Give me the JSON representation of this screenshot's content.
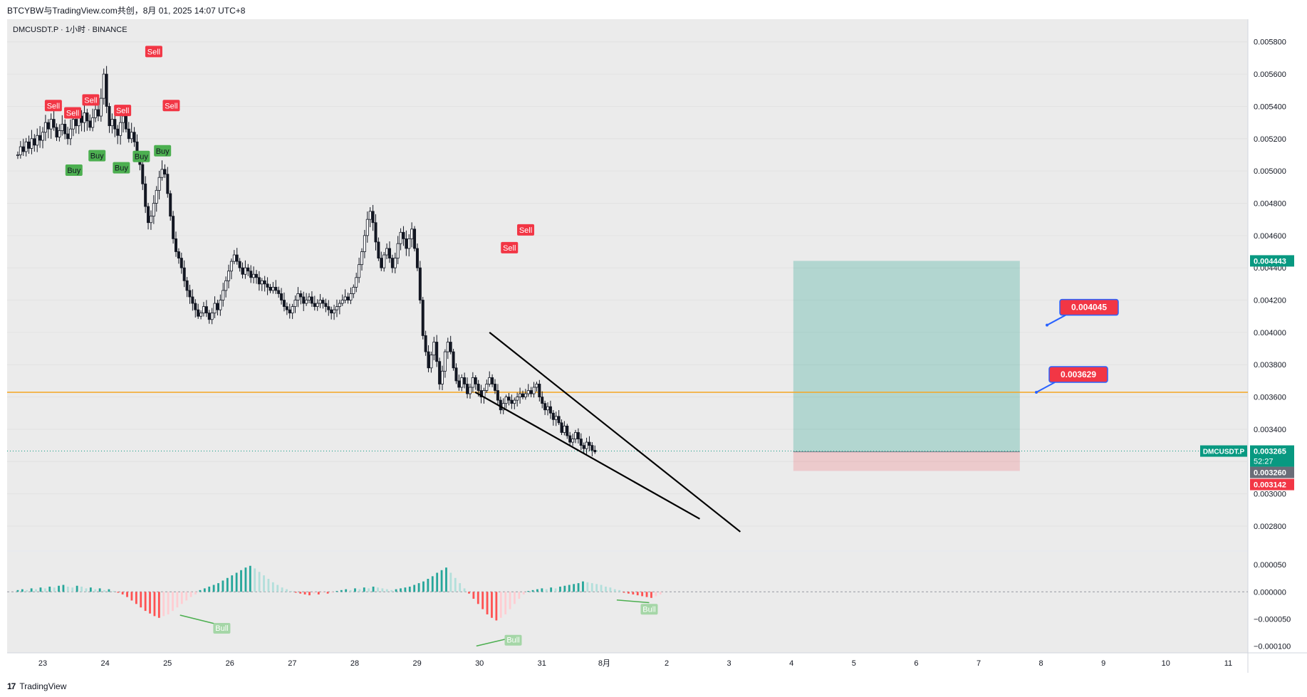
{
  "header": {
    "text": "BTCYBW与TradingView.com共创，8月 01, 2025 14:07 UTC+8"
  },
  "footer": {
    "logo": "17",
    "brand": "TradingView"
  },
  "chart_data": {
    "type": "candlestick",
    "symbol_label": "DMCUSDT.P · 1小时 · BINANCE",
    "x_ticks": [
      "23",
      "24",
      "25",
      "26",
      "27",
      "28",
      "29",
      "30",
      "31",
      "8月",
      "2",
      "3",
      "4",
      "5",
      "6",
      "7",
      "8",
      "9",
      "10",
      "11"
    ],
    "y_ticks": [
      "0.005800",
      "0.005600",
      "0.005400",
      "0.005200",
      "0.005000",
      "0.004800",
      "0.004600",
      "0.004400",
      "0.004200",
      "0.004000",
      "0.003800",
      "0.003600",
      "0.003400",
      "0.003200",
      "0.003000",
      "0.002800"
    ],
    "ylim": [
      0.00265,
      0.00594
    ],
    "price_labels": {
      "target": {
        "value": "0.004443",
        "color": "#089981"
      },
      "current_symbol": "DMCUSDT.P",
      "current": {
        "value": "0.003265",
        "color": "#089981"
      },
      "countdown": "52:27",
      "level_grey": {
        "value": "0.003260",
        "color": "#6a6d78"
      },
      "stop": {
        "value": "0.003142",
        "color": "#f23645"
      }
    },
    "horizontal_line": {
      "value": 0.003629,
      "color": "#f5a623"
    },
    "position_box": {
      "entry": 0.00326,
      "target": 0.004443,
      "stop": 0.003142,
      "start_day": 35.03,
      "end_day": 38.66
    },
    "callouts": [
      {
        "text": "0.004045",
        "value": 0.004045
      },
      {
        "text": "0.003629",
        "value": 0.003629
      }
    ],
    "trendlines": [
      {
        "from": [
          30.16,
          0.004
        ],
        "to": [
          34.18,
          0.002765
        ]
      },
      {
        "from": [
          29.93,
          0.00363
        ],
        "to": [
          33.53,
          0.002845
        ]
      }
    ],
    "candles_close": [
      0.0051,
      0.00515,
      0.00512,
      0.00518,
      0.00514,
      0.0052,
      0.00516,
      0.00522,
      0.00519,
      0.00524,
      0.0053,
      0.00526,
      0.00532,
      0.00527,
      0.00521,
      0.00525,
      0.00529,
      0.00523,
      0.0052,
      0.00526,
      0.00532,
      0.00528,
      0.00534,
      0.0053,
      0.00536,
      0.00531,
      0.00527,
      0.00533,
      0.00538,
      0.00534,
      0.00545,
      0.0056,
      0.0054,
      0.00528,
      0.00532,
      0.00526,
      0.00522,
      0.0053,
      0.00534,
      0.00526,
      0.0052,
      0.00524,
      0.00518,
      0.0051,
      0.00504,
      0.00492,
      0.00478,
      0.00468,
      0.00472,
      0.0048,
      0.00488,
      0.00496,
      0.00501,
      0.00498,
      0.00486,
      0.00472,
      0.00458,
      0.0045,
      0.00446,
      0.0044,
      0.00432,
      0.00426,
      0.00422,
      0.00418,
      0.00414,
      0.0041,
      0.00412,
      0.00416,
      0.00412,
      0.00408,
      0.00412,
      0.00418,
      0.00414,
      0.0042,
      0.00426,
      0.00432,
      0.00438,
      0.00444,
      0.00448,
      0.00444,
      0.0044,
      0.00436,
      0.0044,
      0.00438,
      0.00434,
      0.00436,
      0.00434,
      0.0043,
      0.00432,
      0.0043,
      0.00428,
      0.00426,
      0.00428,
      0.00426,
      0.00424,
      0.0042,
      0.00416,
      0.00414,
      0.00412,
      0.00416,
      0.0042,
      0.00424,
      0.00422,
      0.00418,
      0.0042,
      0.00422,
      0.00418,
      0.00416,
      0.00418,
      0.0042,
      0.00418,
      0.00416,
      0.00414,
      0.00412,
      0.00414,
      0.00416,
      0.00418,
      0.0042,
      0.00422,
      0.0042,
      0.00424,
      0.00428,
      0.00434,
      0.00442,
      0.0045,
      0.0046,
      0.0047,
      0.00475,
      0.00468,
      0.00456,
      0.00446,
      0.0044,
      0.00448,
      0.00452,
      0.00446,
      0.0044,
      0.00446,
      0.00455,
      0.00462,
      0.00458,
      0.00452,
      0.00458,
      0.00464,
      0.00452,
      0.0044,
      0.0042,
      0.00398,
      0.00388,
      0.00378,
      0.00386,
      0.00394,
      0.00382,
      0.00368,
      0.00376,
      0.00388,
      0.00394,
      0.00388,
      0.00378,
      0.0037,
      0.00366,
      0.00372,
      0.00368,
      0.00362,
      0.00366,
      0.00372,
      0.00368,
      0.00364,
      0.0036,
      0.00364,
      0.00368,
      0.00372,
      0.00368,
      0.00364,
      0.00358,
      0.00352,
      0.00356,
      0.0036,
      0.00358,
      0.00356,
      0.00358,
      0.0036,
      0.00362,
      0.0036,
      0.00362,
      0.00364,
      0.00362,
      0.00366,
      0.00368,
      0.0036,
      0.00356,
      0.00352,
      0.00354,
      0.0035,
      0.00346,
      0.00348,
      0.00344,
      0.00338,
      0.00342,
      0.00336,
      0.00332,
      0.00334,
      0.00338,
      0.00334,
      0.0033,
      0.00328,
      0.00332,
      0.0033,
      0.00327,
      0.00326
    ],
    "signals": [
      {
        "text": "Sell",
        "day": 23.17,
        "value": 0.005405,
        "kind": "sell"
      },
      {
        "text": "Sell",
        "day": 23.48,
        "value": 0.00536,
        "kind": "sell"
      },
      {
        "text": "Sell",
        "day": 23.77,
        "value": 0.00544,
        "kind": "sell"
      },
      {
        "text": "Sell",
        "day": 24.28,
        "value": 0.005375,
        "kind": "sell"
      },
      {
        "text": "Sell",
        "day": 24.78,
        "value": 0.00574,
        "kind": "sell"
      },
      {
        "text": "Sell",
        "day": 25.06,
        "value": 0.005405,
        "kind": "sell"
      },
      {
        "text": "Sell",
        "day": 30.48,
        "value": 0.004525,
        "kind": "sell"
      },
      {
        "text": "Sell",
        "day": 30.74,
        "value": 0.004635,
        "kind": "sell"
      },
      {
        "text": "Buy",
        "day": 23.5,
        "value": 0.005005,
        "kind": "buy"
      },
      {
        "text": "Buy",
        "day": 23.87,
        "value": 0.005095,
        "kind": "buy"
      },
      {
        "text": "Buy",
        "day": 24.26,
        "value": 0.00502,
        "kind": "buy"
      },
      {
        "text": "Buy",
        "day": 24.58,
        "value": 0.00509,
        "kind": "buy"
      },
      {
        "text": "Buy",
        "day": 24.92,
        "value": 0.005125,
        "kind": "buy"
      }
    ],
    "oscillator": {
      "y_ticks": [
        "0.000050",
        "0.000000",
        "−0.000050",
        "−0.000100"
      ],
      "ylim": [
        -0.00011,
        7e-05
      ],
      "labels": [
        {
          "text": "Bull",
          "day": 25.87,
          "value": -6e-05
        },
        {
          "text": "Bull",
          "day": 30.54,
          "value": -8.2e-05
        },
        {
          "text": "Bull",
          "day": 32.72,
          "value": -2.5e-05
        }
      ],
      "histogram": [
        2,
        3,
        2,
        4,
        3,
        5,
        4,
        6,
        5,
        7,
        8,
        6,
        5,
        7,
        6,
        4,
        5,
        3,
        4,
        2,
        3,
        1,
        -1,
        -3,
        -6,
        -10,
        -14,
        -18,
        -22,
        -25,
        -28,
        -30,
        -28,
        -26,
        -22,
        -18,
        -14,
        -10,
        -6,
        -3,
        2,
        4,
        6,
        8,
        10,
        13,
        16,
        19,
        22,
        25,
        28,
        30,
        27,
        23,
        19,
        15,
        11,
        8,
        5,
        3,
        1,
        -1,
        -2,
        -3,
        -4,
        -2,
        -3,
        -1,
        -2,
        -1,
        1,
        2,
        3,
        2,
        4,
        3,
        5,
        4,
        6,
        5,
        4,
        3,
        2,
        3,
        4,
        5,
        6,
        8,
        10,
        12,
        15,
        18,
        22,
        25,
        28,
        22,
        16,
        10,
        4,
        -2,
        -8,
        -14,
        -20,
        -26,
        -30,
        -33,
        -30,
        -26,
        -20,
        -14,
        -8,
        -3,
        1,
        2,
        3,
        4,
        3,
        5,
        4,
        6,
        7,
        8,
        9,
        10,
        12,
        11,
        10,
        9,
        8,
        6,
        5,
        3,
        2,
        -1,
        -2,
        -3,
        -4,
        -5,
        -6,
        -7,
        -5,
        -3
      ]
    }
  }
}
